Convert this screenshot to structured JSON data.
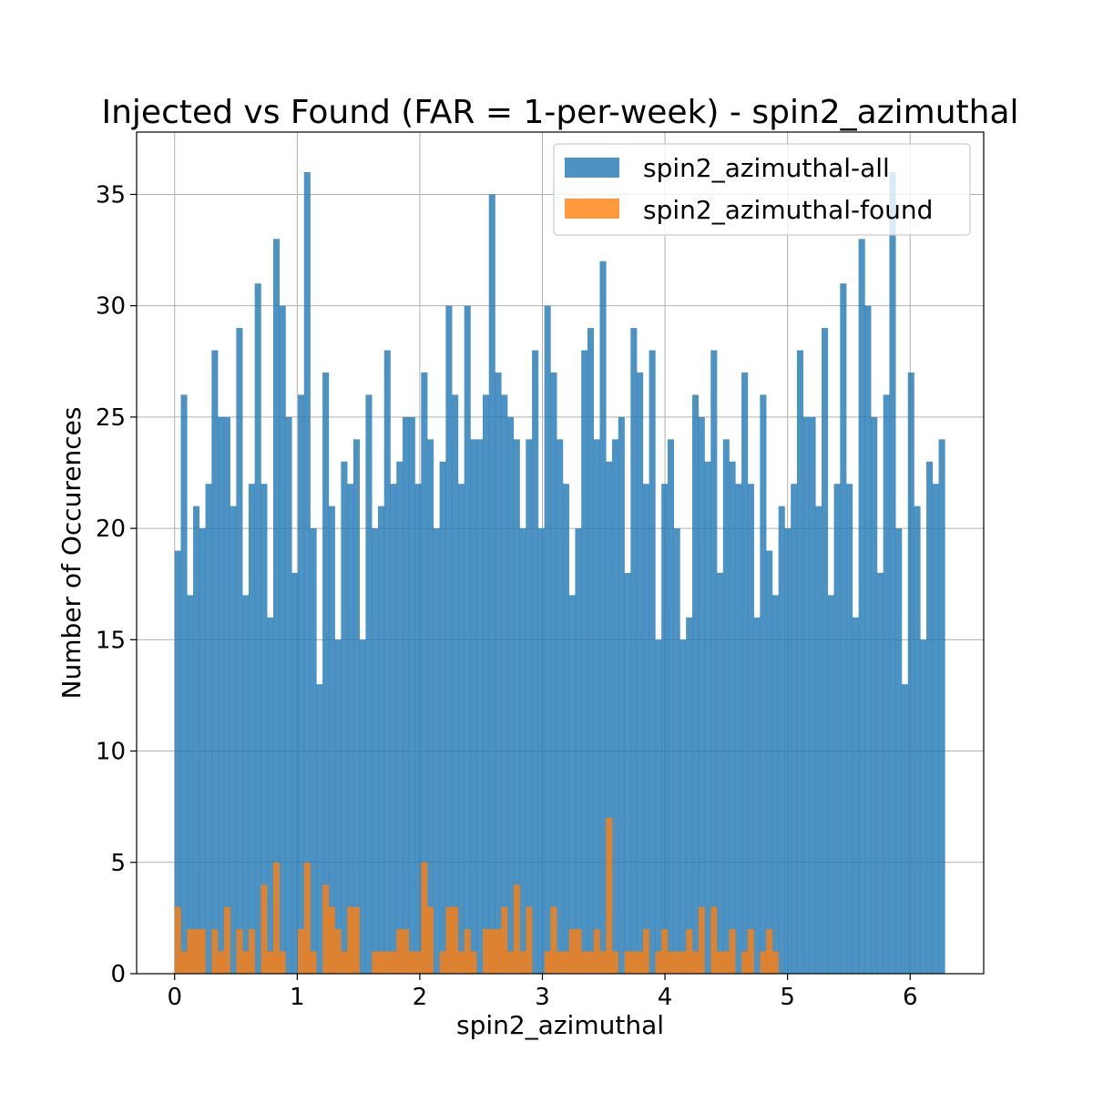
{
  "chart_data": {
    "type": "bar",
    "title": "Injected vs Found (FAR = 1-per-week) - spin2_azimuthal",
    "xlabel": "spin2_azimuthal",
    "ylabel": "Number of Occurences",
    "xlim": [
      -0.31,
      6.6
    ],
    "ylim": [
      0,
      37.8
    ],
    "x_ticks": [
      0,
      1,
      2,
      3,
      4,
      5,
      6
    ],
    "y_ticks": [
      0,
      5,
      10,
      15,
      20,
      25,
      30,
      35
    ],
    "grid": true,
    "legend_position": "top-right",
    "bin_range": [
      0,
      6.283
    ],
    "bin_count": 125,
    "series": [
      {
        "name": "spin2_azimuthal-all",
        "color": "#1f77b4",
        "alpha": 0.8,
        "values": [
          19,
          26,
          17,
          21,
          20,
          22,
          28,
          25,
          25,
          21,
          29,
          17,
          22,
          31,
          22,
          16,
          33,
          30,
          25,
          18,
          26,
          36,
          20,
          13,
          27,
          21,
          15,
          23,
          22,
          24,
          15,
          26,
          20,
          21,
          28,
          22,
          23,
          25,
          25,
          22,
          27,
          24,
          20,
          23,
          30,
          26,
          22,
          30,
          24,
          24,
          26,
          35,
          27,
          26,
          25,
          24,
          20,
          24,
          28,
          20,
          30,
          27,
          24,
          22,
          17,
          20,
          28,
          29,
          24,
          32,
          23,
          24,
          25,
          18,
          29,
          27,
          22,
          28,
          15,
          22,
          24,
          20,
          15,
          16,
          26,
          25,
          23,
          28,
          18,
          24,
          23,
          22,
          27,
          22,
          16,
          26,
          19,
          17,
          21,
          20,
          22,
          28,
          25,
          25,
          21,
          29,
          17,
          22,
          31,
          22,
          16,
          33,
          30,
          25,
          18,
          26,
          36,
          20,
          13,
          27,
          21,
          15,
          23,
          22,
          24
        ]
      },
      {
        "name": "spin2_azimuthal-found",
        "color": "#ff7f0e",
        "alpha": 0.8,
        "values": [
          3,
          1,
          2,
          2,
          2,
          0,
          2,
          1,
          3,
          0,
          2,
          1,
          2,
          0,
          4,
          1,
          5,
          1,
          0,
          0,
          2,
          5,
          1,
          0,
          4,
          3,
          2,
          1,
          3,
          3,
          0,
          0,
          1,
          1,
          1,
          1,
          2,
          2,
          1,
          1,
          5,
          3,
          0,
          1,
          3,
          3,
          1,
          2,
          1,
          0,
          2,
          2,
          2,
          3,
          1,
          4,
          1,
          3,
          0,
          0,
          1,
          3,
          1,
          1,
          2,
          2,
          1,
          1,
          2,
          1,
          7,
          1,
          0,
          1,
          1,
          1,
          2,
          0,
          1,
          2,
          1,
          1,
          1,
          2,
          1,
          3,
          0,
          3,
          1,
          1,
          2,
          0,
          1,
          2,
          0,
          1,
          2,
          1,
          0,
          0,
          0,
          0,
          0,
          0,
          0,
          0,
          0,
          0,
          0,
          0,
          0,
          0,
          0,
          0,
          0,
          0,
          0,
          0,
          0,
          0,
          0,
          0,
          0,
          0,
          0
        ]
      }
    ]
  }
}
